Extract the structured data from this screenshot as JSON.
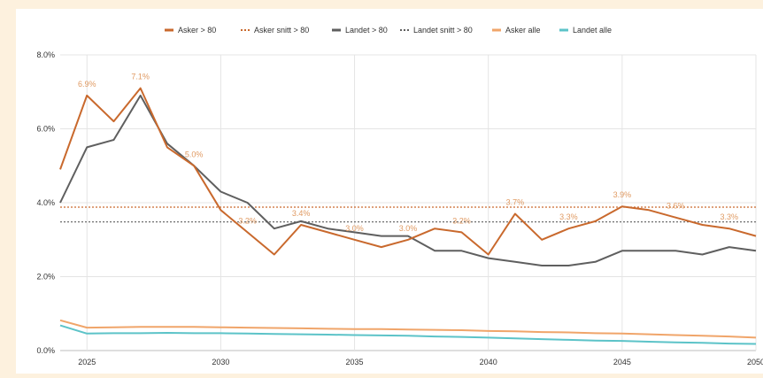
{
  "chart_data": {
    "type": "line",
    "title": "",
    "xlabel": "",
    "ylabel": "",
    "xlim": [
      2024,
      2050
    ],
    "ylim": [
      0,
      0.08
    ],
    "x_ticks": [
      {
        "value": 2025,
        "label": "2025"
      },
      {
        "value": 2030,
        "label": "2030"
      },
      {
        "value": 2035,
        "label": "2035"
      },
      {
        "value": 2040,
        "label": "2040"
      },
      {
        "value": 2045,
        "label": "2045"
      },
      {
        "value": 2050,
        "label": "2050"
      }
    ],
    "y_ticks": [
      {
        "value": 0,
        "label": "0.0%"
      },
      {
        "value": 0.02,
        "label": "2.0%"
      },
      {
        "value": 0.04,
        "label": "4.0%"
      },
      {
        "value": 0.06,
        "label": "6.0%"
      },
      {
        "value": 0.08,
        "label": "8.0%"
      }
    ],
    "grid": true,
    "legend_position": "top",
    "x": [
      2024,
      2025,
      2026,
      2027,
      2028,
      2029,
      2030,
      2031,
      2032,
      2033,
      2034,
      2035,
      2036,
      2037,
      2038,
      2039,
      2040,
      2041,
      2042,
      2043,
      2044,
      2045,
      2046,
      2047,
      2048,
      2049,
      2050
    ],
    "series": [
      {
        "name": "Asker > 80",
        "style": "solid",
        "color": "#c9692d",
        "values": [
          0.049,
          0.069,
          0.062,
          0.071,
          0.055,
          0.05,
          0.038,
          0.032,
          0.026,
          0.034,
          0.032,
          0.03,
          0.028,
          0.03,
          0.033,
          0.032,
          0.026,
          0.037,
          0.03,
          0.033,
          0.035,
          0.039,
          0.038,
          0.036,
          0.034,
          0.033,
          0.031
        ]
      },
      {
        "name": "Asker snitt > 80",
        "style": "dotted",
        "color": "#c9692d",
        "values": [
          0.0388,
          0.0388,
          0.0388,
          0.0388,
          0.0388,
          0.0388,
          0.0388,
          0.0388,
          0.0388,
          0.0388,
          0.0388,
          0.0388,
          0.0388,
          0.0388,
          0.0388,
          0.0388,
          0.0388,
          0.0388,
          0.0388,
          0.0388,
          0.0388,
          0.0388,
          0.0388,
          0.0388,
          0.0388,
          0.0388,
          0.0388
        ]
      },
      {
        "name": "Landet > 80",
        "style": "solid",
        "color": "#5f5f5f",
        "values": [
          0.04,
          0.055,
          0.057,
          0.069,
          0.056,
          0.05,
          0.043,
          0.04,
          0.033,
          0.035,
          0.033,
          0.032,
          0.031,
          0.031,
          0.027,
          0.027,
          0.025,
          0.024,
          0.023,
          0.023,
          0.024,
          0.027,
          0.027,
          0.027,
          0.026,
          0.028,
          0.027
        ]
      },
      {
        "name": "Landet snitt > 80",
        "style": "dotted",
        "color": "#5f5f5f",
        "values": [
          0.0348,
          0.0348,
          0.0348,
          0.0348,
          0.0348,
          0.0348,
          0.0348,
          0.0348,
          0.0348,
          0.0348,
          0.0348,
          0.0348,
          0.0348,
          0.0348,
          0.0348,
          0.0348,
          0.0348,
          0.0348,
          0.0348,
          0.0348,
          0.0348,
          0.0348,
          0.0348,
          0.0348,
          0.0348,
          0.0348,
          0.0348
        ]
      },
      {
        "name": "Asker alle",
        "style": "solid",
        "color": "#f0a56a",
        "values": [
          0.0082,
          0.0062,
          0.0063,
          0.0064,
          0.0064,
          0.0064,
          0.0063,
          0.0062,
          0.0061,
          0.006,
          0.0059,
          0.0058,
          0.0058,
          0.0057,
          0.0056,
          0.0055,
          0.0053,
          0.0052,
          0.005,
          0.0049,
          0.0047,
          0.0046,
          0.0044,
          0.0042,
          0.004,
          0.0038,
          0.0035
        ]
      },
      {
        "name": "Landet alle",
        "style": "solid",
        "color": "#5cc3c8",
        "values": [
          0.0068,
          0.0046,
          0.0047,
          0.0047,
          0.0048,
          0.0047,
          0.0047,
          0.0046,
          0.0045,
          0.0044,
          0.0043,
          0.0042,
          0.0041,
          0.004,
          0.0038,
          0.0037,
          0.0035,
          0.0033,
          0.0031,
          0.0029,
          0.0027,
          0.0026,
          0.0024,
          0.0022,
          0.0021,
          0.0019,
          0.0018
        ]
      }
    ],
    "data_labels": [
      {
        "series": "Asker > 80",
        "x": 2025,
        "y": 0.069,
        "text": "6.9%"
      },
      {
        "series": "Asker > 80",
        "x": 2027,
        "y": 0.071,
        "text": "7.1%"
      },
      {
        "series": "Asker > 80",
        "x": 2029,
        "y": 0.05,
        "text": "5.0%"
      },
      {
        "series": "Asker > 80",
        "x": 2031,
        "y": 0.032,
        "text": "3.2%"
      },
      {
        "series": "Asker > 80",
        "x": 2033,
        "y": 0.034,
        "text": "3.4%"
      },
      {
        "series": "Asker > 80",
        "x": 2035,
        "y": 0.03,
        "text": "3.0%"
      },
      {
        "series": "Asker > 80",
        "x": 2037,
        "y": 0.03,
        "text": "3.0%"
      },
      {
        "series": "Asker > 80",
        "x": 2039,
        "y": 0.032,
        "text": "3.2%"
      },
      {
        "series": "Asker > 80",
        "x": 2041,
        "y": 0.037,
        "text": "3.7%"
      },
      {
        "series": "Asker > 80",
        "x": 2043,
        "y": 0.033,
        "text": "3.3%"
      },
      {
        "series": "Asker > 80",
        "x": 2045,
        "y": 0.039,
        "text": "3.9%"
      },
      {
        "series": "Asker > 80",
        "x": 2047,
        "y": 0.036,
        "text": "3.6%"
      },
      {
        "series": "Asker > 80",
        "x": 2049,
        "y": 0.033,
        "text": "3.3%"
      }
    ]
  }
}
